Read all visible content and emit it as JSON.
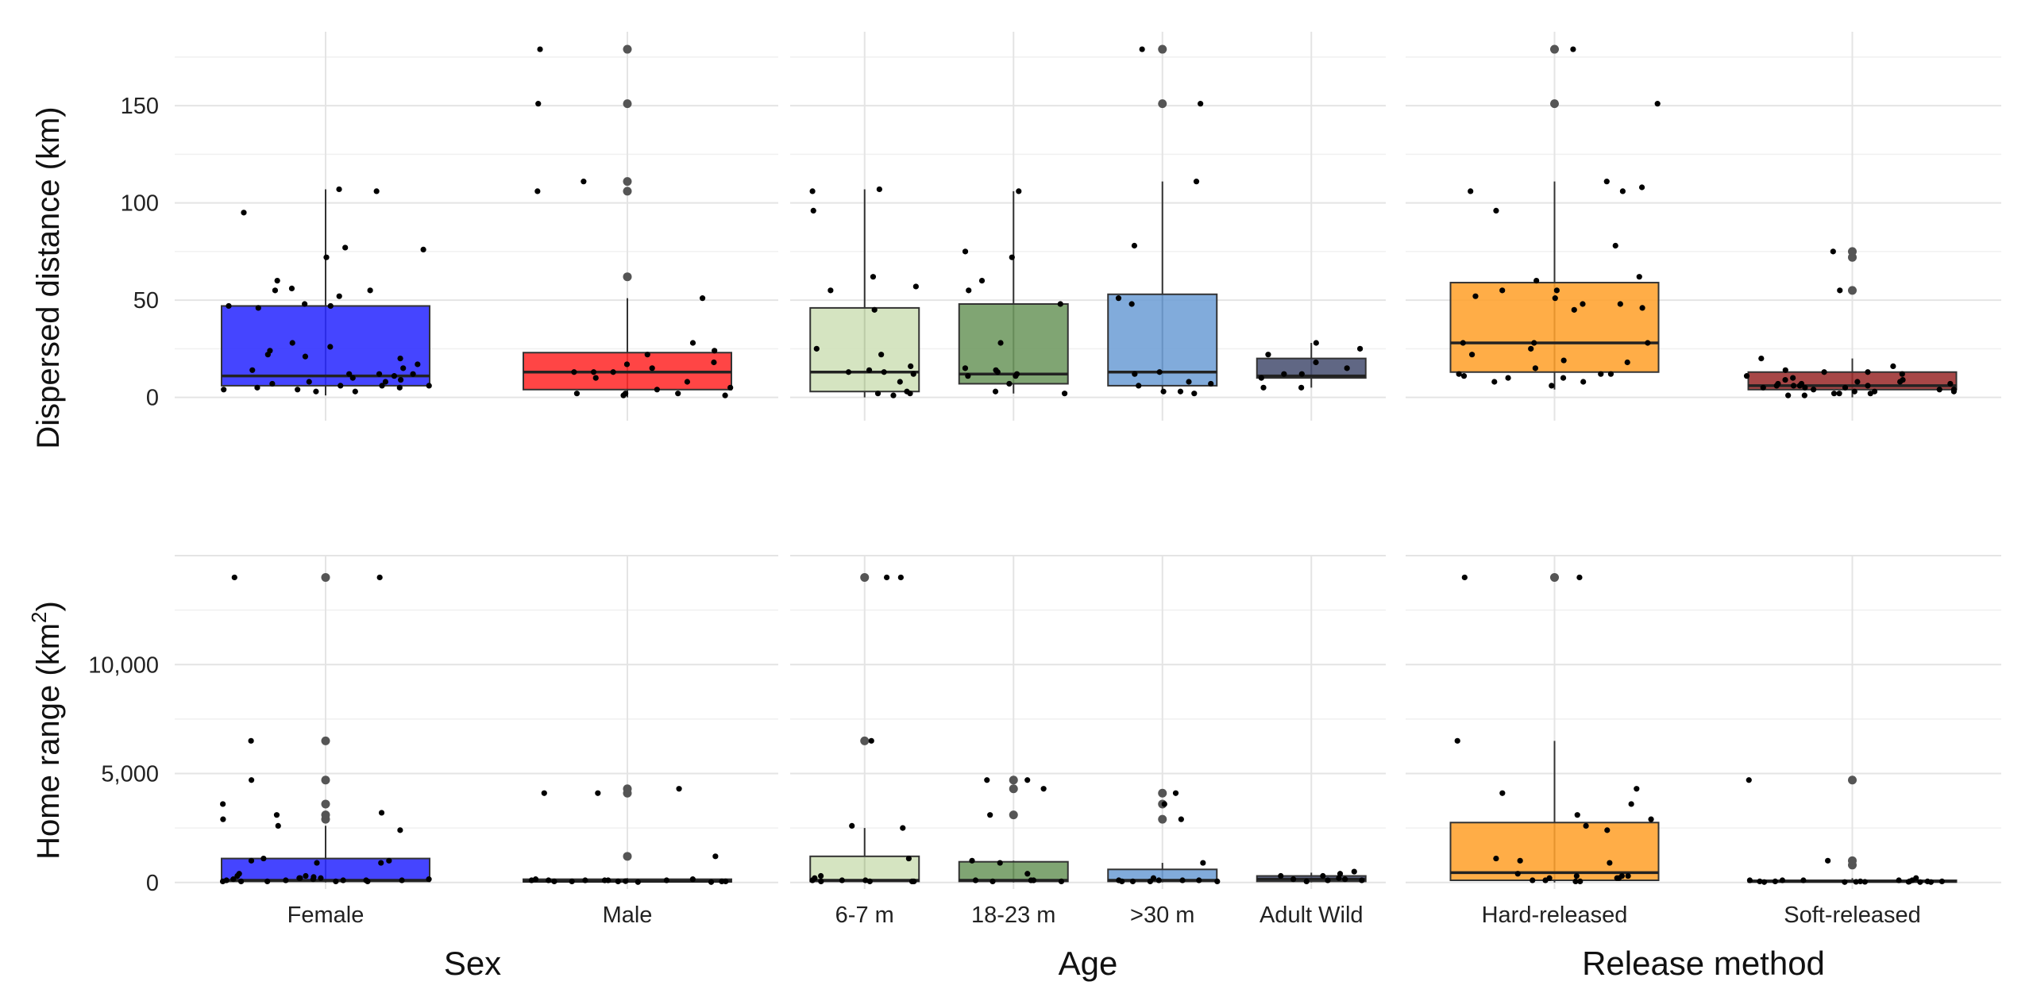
{
  "chart_data": {
    "type": "boxplot",
    "title": "",
    "facets": [
      {
        "name": "Sex",
        "categories": [
          "Female",
          "Male"
        ]
      },
      {
        "name": "Age",
        "categories": [
          "6-7 m",
          "18-23 m",
          ">30 m",
          "Adult Wild"
        ]
      },
      {
        "name": "Release method",
        "categories": [
          "Hard-released",
          "Soft-released"
        ]
      }
    ],
    "colors": {
      "Female": "#2b2bff",
      "Male": "#ff2b2b",
      "6-7 m": "#cfe0b8",
      "18-23 m": "#6e9960",
      ">30 m": "#6f9fd6",
      "Adult Wild": "#4a5273",
      "Hard-released": "#ffa22e",
      "Soft-released": "#9b2e2e"
    },
    "panels": [
      {
        "ylabel": "Dispersed distance (km)",
        "ylim": [
          -12,
          188
        ],
        "yticks": [
          0,
          50,
          100,
          150
        ],
        "ytick_labels": [
          "0",
          "50",
          "100",
          "150"
        ],
        "boxes": {
          "Female": {
            "q1": 6,
            "median": 11,
            "q3": 47,
            "whisker_low": 1,
            "whisker_high": 107,
            "outliers": []
          },
          "Male": {
            "q1": 4,
            "median": 13,
            "q3": 23,
            "whisker_low": 0,
            "whisker_high": 51,
            "outliers": [
              62,
              106,
              111,
              151,
              179
            ]
          },
          "6-7 m": {
            "q1": 3,
            "median": 13,
            "q3": 46,
            "whisker_low": 0,
            "whisker_high": 107,
            "outliers": []
          },
          "18-23 m": {
            "q1": 7,
            "median": 12,
            "q3": 48,
            "whisker_low": 2,
            "whisker_high": 106,
            "outliers": []
          },
          ">30 m": {
            "q1": 6,
            "median": 13,
            "q3": 53,
            "whisker_low": 2,
            "whisker_high": 111,
            "outliers": [
              151,
              179
            ]
          },
          "Adult Wild": {
            "q1": 10,
            "median": 11,
            "q3": 20,
            "whisker_low": 5,
            "whisker_high": 28,
            "outliers": []
          },
          "Hard-released": {
            "q1": 13,
            "median": 28,
            "q3": 59,
            "whisker_low": 4,
            "whisker_high": 111,
            "outliers": [
              151,
              179
            ]
          },
          "Soft-released": {
            "q1": 4,
            "median": 6,
            "q3": 13,
            "whisker_low": 0,
            "whisker_high": 20,
            "outliers": [
              55,
              72,
              75
            ]
          }
        },
        "points": {
          "Female": [
            46,
            106,
            52,
            3,
            60,
            11,
            12,
            72,
            47,
            26,
            4,
            77,
            12,
            48,
            5,
            56,
            8,
            24,
            6,
            55,
            15,
            20,
            47,
            10,
            17,
            22,
            6,
            14,
            12,
            5,
            28,
            107,
            4,
            21,
            6,
            95,
            3,
            76,
            7,
            55,
            8,
            9
          ],
          "Male": [
            1,
            13,
            2,
            8,
            51,
            4,
            151,
            17,
            28,
            2,
            179,
            13,
            5,
            18,
            1,
            10,
            2,
            106,
            24,
            111,
            13,
            15,
            22
          ],
          "6-7 m": [
            45,
            96,
            13,
            3,
            55,
            2,
            22,
            1,
            25,
            13,
            12,
            62,
            14,
            107,
            2,
            57,
            16,
            106,
            8
          ],
          "18-23 m": [
            106,
            11,
            13,
            3,
            75,
            11,
            2,
            15,
            60,
            12,
            72,
            14,
            55,
            28,
            48,
            7
          ],
          ">30 m": [
            111,
            51,
            151,
            7,
            179,
            13,
            48,
            6,
            12,
            8,
            3,
            78,
            2,
            3
          ],
          "Adult Wild": [
            5,
            10,
            12,
            18,
            28,
            12,
            5,
            25,
            22,
            15
          ],
          "Hard-released": [
            48,
            55,
            108,
            12,
            106,
            10,
            62,
            8,
            46,
            11,
            52,
            28,
            12,
            55,
            10,
            19,
            60,
            15,
            28,
            22,
            106,
            12,
            151,
            78,
            18,
            179,
            25,
            51,
            6,
            111,
            96,
            45,
            28,
            8,
            48
          ],
          "Soft-released": [
            6,
            1,
            2,
            7,
            4,
            12,
            5,
            3,
            13,
            14,
            8,
            6,
            9,
            7,
            20,
            3,
            10,
            5,
            2,
            11,
            13,
            4,
            6,
            1,
            55,
            16,
            75,
            7,
            9,
            3,
            5,
            8,
            4,
            2,
            6
          ]
        }
      },
      {
        "ylabel": "Home range (km",
        "ylabel_sup": "2",
        "ylabel_end": ")",
        "ylim": [
          -300,
          15000
        ],
        "yticks": [
          0,
          5000,
          10000
        ],
        "ytick_labels": [
          "0",
          "5,000",
          "10,000"
        ],
        "boxes": {
          "Female": {
            "q1": 50,
            "median": 100,
            "q3": 1100,
            "whisker_low": 0,
            "whisker_high": 2600,
            "outliers": [
              2900,
              3100,
              3600,
              4700,
              6500,
              14000
            ]
          },
          "Male": {
            "q1": 30,
            "median": 60,
            "q3": 150,
            "whisker_low": 0,
            "whisker_high": 200,
            "outliers": [
              1200,
              4100,
              4300
            ]
          },
          "6-7 m": {
            "q1": 50,
            "median": 100,
            "q3": 1200,
            "whisker_low": 0,
            "whisker_high": 2500,
            "outliers": [
              6500,
              14000
            ]
          },
          "18-23 m": {
            "q1": 50,
            "median": 100,
            "q3": 950,
            "whisker_low": 0,
            "whisker_high": 1000,
            "outliers": [
              3100,
              4300,
              4700
            ]
          },
          ">30 m": {
            "q1": 50,
            "median": 100,
            "q3": 600,
            "whisker_low": 0,
            "whisker_high": 900,
            "outliers": [
              2900,
              3600,
              4100
            ]
          },
          "Adult Wild": {
            "q1": 50,
            "median": 150,
            "q3": 300,
            "whisker_low": 0,
            "whisker_high": 450,
            "outliers": []
          },
          "Hard-released": {
            "q1": 100,
            "median": 450,
            "q3": 2750,
            "whisker_low": 0,
            "whisker_high": 6500,
            "outliers": [
              14000
            ]
          },
          "Soft-released": {
            "q1": 20,
            "median": 50,
            "q3": 100,
            "whisker_low": 0,
            "whisker_high": 200,
            "outliers": [
              800,
              1000,
              4700
            ]
          }
        },
        "points": {
          "Female": [
            3100,
            150,
            50,
            250,
            1000,
            300,
            100,
            6500,
            200,
            900,
            3600,
            1100,
            50,
            2400,
            3200,
            100,
            300,
            14000,
            200,
            50,
            400,
            150,
            2900,
            100,
            4700,
            900,
            50,
            2600,
            14000,
            100,
            150,
            50,
            1000,
            200,
            100
          ],
          "Male": [
            4100,
            1200,
            50,
            100,
            20,
            50,
            100,
            150,
            4300,
            4100,
            100,
            50,
            100,
            20,
            50,
            100,
            60,
            50,
            100,
            150
          ],
          "6-7 m": [
            1100,
            300,
            50,
            100,
            200,
            14000,
            14000,
            100,
            50,
            2500,
            6500,
            50,
            2600,
            100,
            50
          ],
          "18-23 m": [
            100,
            400,
            1000,
            50,
            4300,
            3100,
            4700,
            100,
            4700,
            50,
            900,
            100
          ],
          ">30 m": [
            50,
            100,
            50,
            4100,
            100,
            2900,
            50,
            200,
            100,
            3600,
            900,
            50,
            100
          ],
          "Adult Wild": [
            50,
            100,
            150,
            300,
            100,
            500,
            300,
            200,
            400,
            150
          ],
          "Hard-released": [
            3100,
            200,
            50,
            100,
            4100,
            300,
            3600,
            200,
            14000,
            6500,
            400,
            100,
            2600,
            200,
            300,
            2900,
            4300,
            1100,
            2400,
            900,
            1000,
            14000,
            50,
            300
          ],
          "Soft-released": [
            1000,
            50,
            20,
            100,
            50,
            30,
            200,
            100,
            50,
            20,
            4700,
            100,
            50,
            20,
            100,
            50,
            30,
            20,
            50,
            100,
            30
          ]
        }
      }
    ]
  }
}
